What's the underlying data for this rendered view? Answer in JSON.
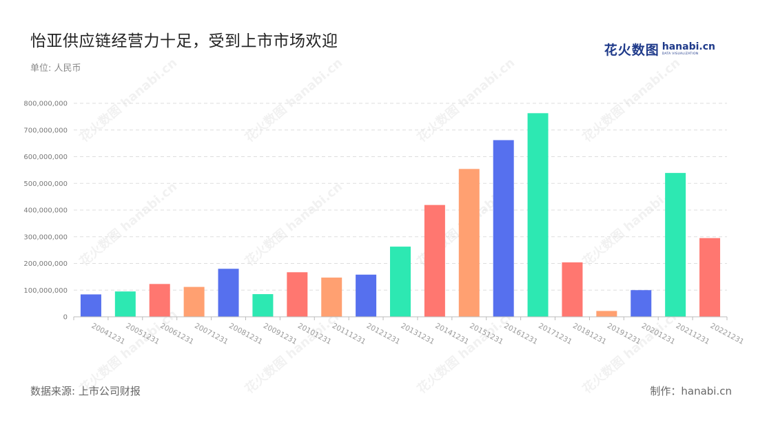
{
  "header": {
    "title": "怡亚供应链经营力十足，受到上市市场欢迎",
    "unit": "单位: 人民币"
  },
  "logo": {
    "cn": "花火数图",
    "en": "hanabi.cn",
    "sub": "DATA VISUALIZATION"
  },
  "footer": {
    "source": "数据来源: 上市公司财报",
    "credit": "制作：hanabi.cn"
  },
  "colors": {
    "blue": "#5670ee",
    "green": "#2de8b2",
    "red": "#ff7770",
    "orange": "#ffa071",
    "grid": "#dddddd",
    "axis": "#bbbbbb"
  },
  "chart_data": {
    "type": "bar",
    "title": "怡亚供应链经营力十足，受到上市市场欢迎",
    "ylabel": "",
    "xlabel": "",
    "ylim": [
      0,
      800000000
    ],
    "yticks": [
      0,
      100000000,
      200000000,
      300000000,
      400000000,
      500000000,
      600000000,
      700000000,
      800000000
    ],
    "ytick_labels": [
      "0",
      "100,000,000",
      "200,000,000",
      "300,000,000",
      "400,000,000",
      "500,000,000",
      "600,000,000",
      "700,000,000",
      "800,000,000"
    ],
    "grid": true,
    "categories": [
      "20041231",
      "20051231",
      "20061231",
      "20071231",
      "20081231",
      "20091231",
      "20101231",
      "20111231",
      "20121231",
      "20131231",
      "20141231",
      "20151231",
      "20161231",
      "20171231",
      "20181231",
      "20191231",
      "20201231",
      "20211231",
      "20221231"
    ],
    "values": [
      84000000,
      95000000,
      123000000,
      112000000,
      180000000,
      85000000,
      167000000,
      147000000,
      158000000,
      263000000,
      419000000,
      554000000,
      662000000,
      763000000,
      204000000,
      22000000,
      100000000,
      539000000,
      295000000
    ],
    "bar_colors": [
      "blue",
      "green",
      "red",
      "orange",
      "blue",
      "green",
      "red",
      "orange",
      "blue",
      "green",
      "red",
      "orange",
      "blue",
      "green",
      "red",
      "orange",
      "blue",
      "green",
      "red"
    ]
  }
}
